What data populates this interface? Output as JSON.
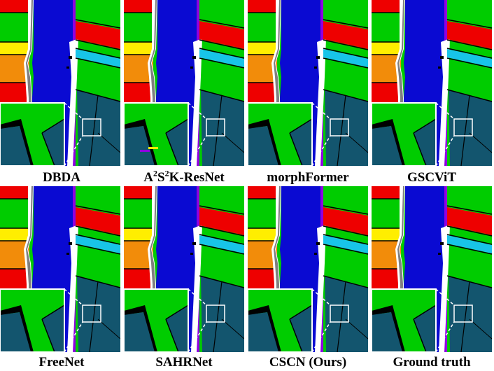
{
  "panels": [
    {
      "caption": "DBDA",
      "artifact": "none"
    },
    {
      "caption_parts": [
        "A",
        "2",
        "S",
        "2",
        "K-ResNet"
      ],
      "artifact": "stripe"
    },
    {
      "caption": "morphFormer",
      "artifact": "none"
    },
    {
      "caption": "GSCViT",
      "artifact": "none"
    },
    {
      "caption": "FreeNet",
      "artifact": "none"
    },
    {
      "caption": "SAHRNet",
      "artifact": "none"
    },
    {
      "caption": "CSCN (Ours)",
      "artifact": "none"
    },
    {
      "caption": "Ground truth",
      "artifact": "none"
    }
  ],
  "colors": {
    "field_green": "#00cc00",
    "river_blue": "#0a0ad2",
    "red": "#ee0000",
    "yellow": "#ffee00",
    "orange": "#f28c0a",
    "cyan": "#18c4e8",
    "teal": "#13556e",
    "black": "#000000",
    "white": "#ffffff",
    "purple": "#8f00e0"
  }
}
